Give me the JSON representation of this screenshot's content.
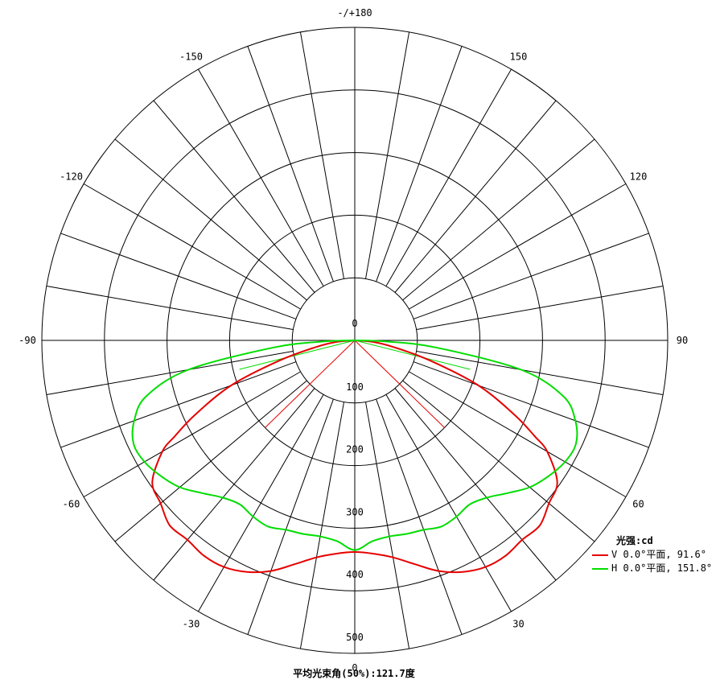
{
  "chart_data": {
    "type": "polar",
    "radial_unit_title": "光强:cd",
    "radial_range": [
      0,
      500
    ],
    "radial_ticks": [
      "0",
      "100",
      "200",
      "300",
      "400",
      "500"
    ],
    "angle_tick_labels": {
      "0": "0",
      "30": "30",
      "60": "60",
      "90": "90",
      "120": "120",
      "150": "150",
      "180": "-/+180",
      "-150": "-150",
      "-120": "-120",
      "-90": "-90",
      "-60": "-60",
      "-30": "-30"
    },
    "spoke_step_deg": 10,
    "rings": [
      100,
      200,
      300,
      400,
      500
    ],
    "footer": "平均光束角(50%):121.7度",
    "series": [
      {
        "name": "V 0.0°平面, 91.6°",
        "color": "#e60000",
        "angles": [
          0,
          5,
          10,
          15,
          20,
          25,
          30,
          35,
          40,
          45,
          50,
          55,
          60,
          62,
          65,
          70,
          75,
          80,
          85,
          90
        ],
        "values": [
          338,
          342,
          352,
          370,
          392,
          408,
          418,
          420,
          416,
          418,
          405,
          395,
          355,
          325,
          282,
          210,
          125,
          65,
          30,
          0
        ],
        "symmetric": true
      },
      {
        "name": "H 0.0°平面, 151.8°",
        "color": "#00dd00",
        "angles": [
          0,
          5,
          10,
          15,
          20,
          25,
          30,
          35,
          40,
          45,
          50,
          55,
          60,
          65,
          70,
          75,
          80,
          85,
          88,
          90
        ],
        "values": [
          335,
          322,
          318,
          320,
          322,
          328,
          325,
          320,
          328,
          345,
          365,
          378,
          388,
          390,
          375,
          345,
          270,
          130,
          48,
          0
        ],
        "symmetric": true
      }
    ],
    "beam_lines": [
      {
        "color": "#e60000",
        "half_angle": 45.8,
        "value": 200
      },
      {
        "color": "#00dd00",
        "half_angle": 75.9,
        "value": 190
      }
    ]
  }
}
